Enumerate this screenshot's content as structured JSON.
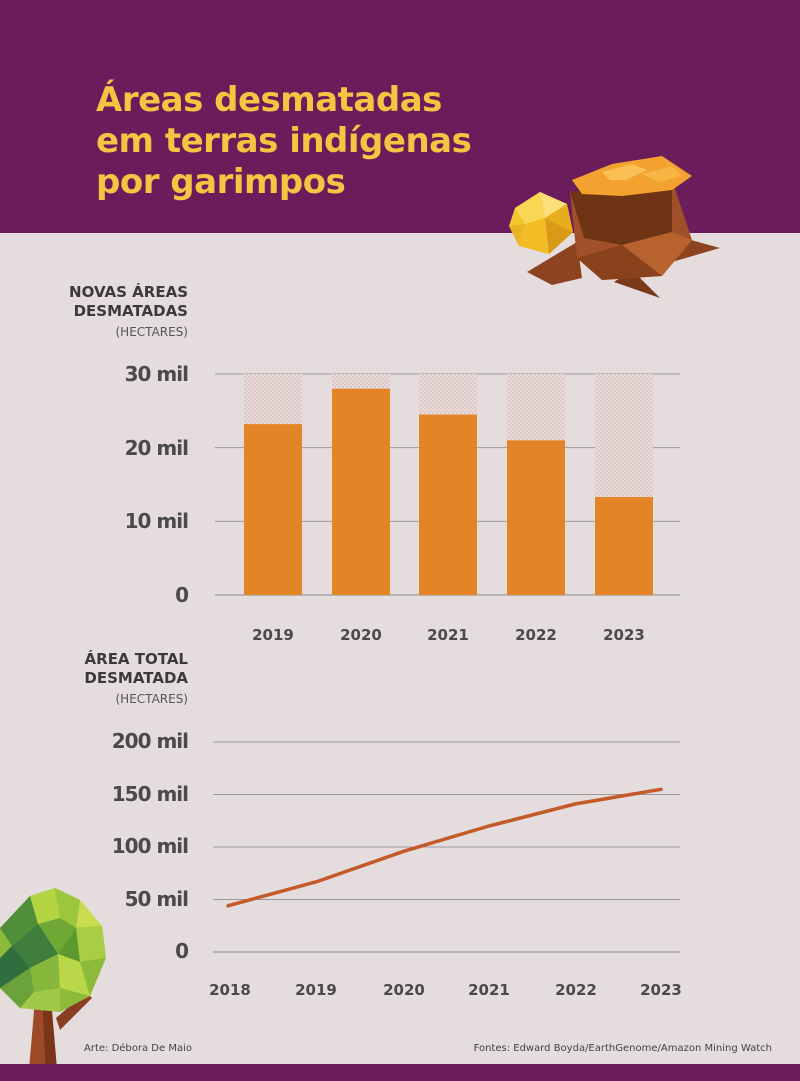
{
  "title_lines": [
    "Áreas desmatadas",
    "em terras indígenas",
    "por garimpos"
  ],
  "colors": {
    "header_bg": "#6a1d5a",
    "title": "#f7c342",
    "bar": "#e38526",
    "bar_dots": "#d9a79a",
    "line": "#c4592a",
    "background": "#e5dcdd",
    "grid": "#9a9a9a"
  },
  "chart_data": [
    {
      "type": "bar",
      "ylabel_lines": [
        "NOVAS ÁREAS",
        "DESMATADAS"
      ],
      "unit": "(HECTARES)",
      "categories": [
        "2019",
        "2020",
        "2021",
        "2022",
        "2023"
      ],
      "values": [
        23200,
        28000,
        24500,
        21000,
        13300
      ],
      "ylim": [
        0,
        30000
      ],
      "yticks": [
        0,
        10000,
        20000,
        30000
      ],
      "ytick_labels": [
        "0",
        "10 mil",
        "20 mil",
        "30 mil"
      ],
      "grid": true
    },
    {
      "type": "line",
      "ylabel_lines": [
        "ÁREA TOTAL",
        "DESMATADA"
      ],
      "unit": "(HECTARES)",
      "x": [
        "2018",
        "2019",
        "2020",
        "2021",
        "2022",
        "2023"
      ],
      "values": [
        44000,
        67000,
        96000,
        120000,
        141000,
        155000
      ],
      "ylim": [
        0,
        200000
      ],
      "yticks": [
        0,
        50000,
        100000,
        150000,
        200000
      ],
      "ytick_labels": [
        "0",
        "50 mil",
        "100 mil",
        "150 mil",
        "200 mil"
      ],
      "grid": true
    }
  ],
  "credit": "Arte: Débora De Maio",
  "source": "Fontes: Edward Boyda/EarthGenome/Amazon Mining Watch",
  "icons": [
    "tree-stump-icon",
    "gold-nugget-icon",
    "tree-icon"
  ]
}
